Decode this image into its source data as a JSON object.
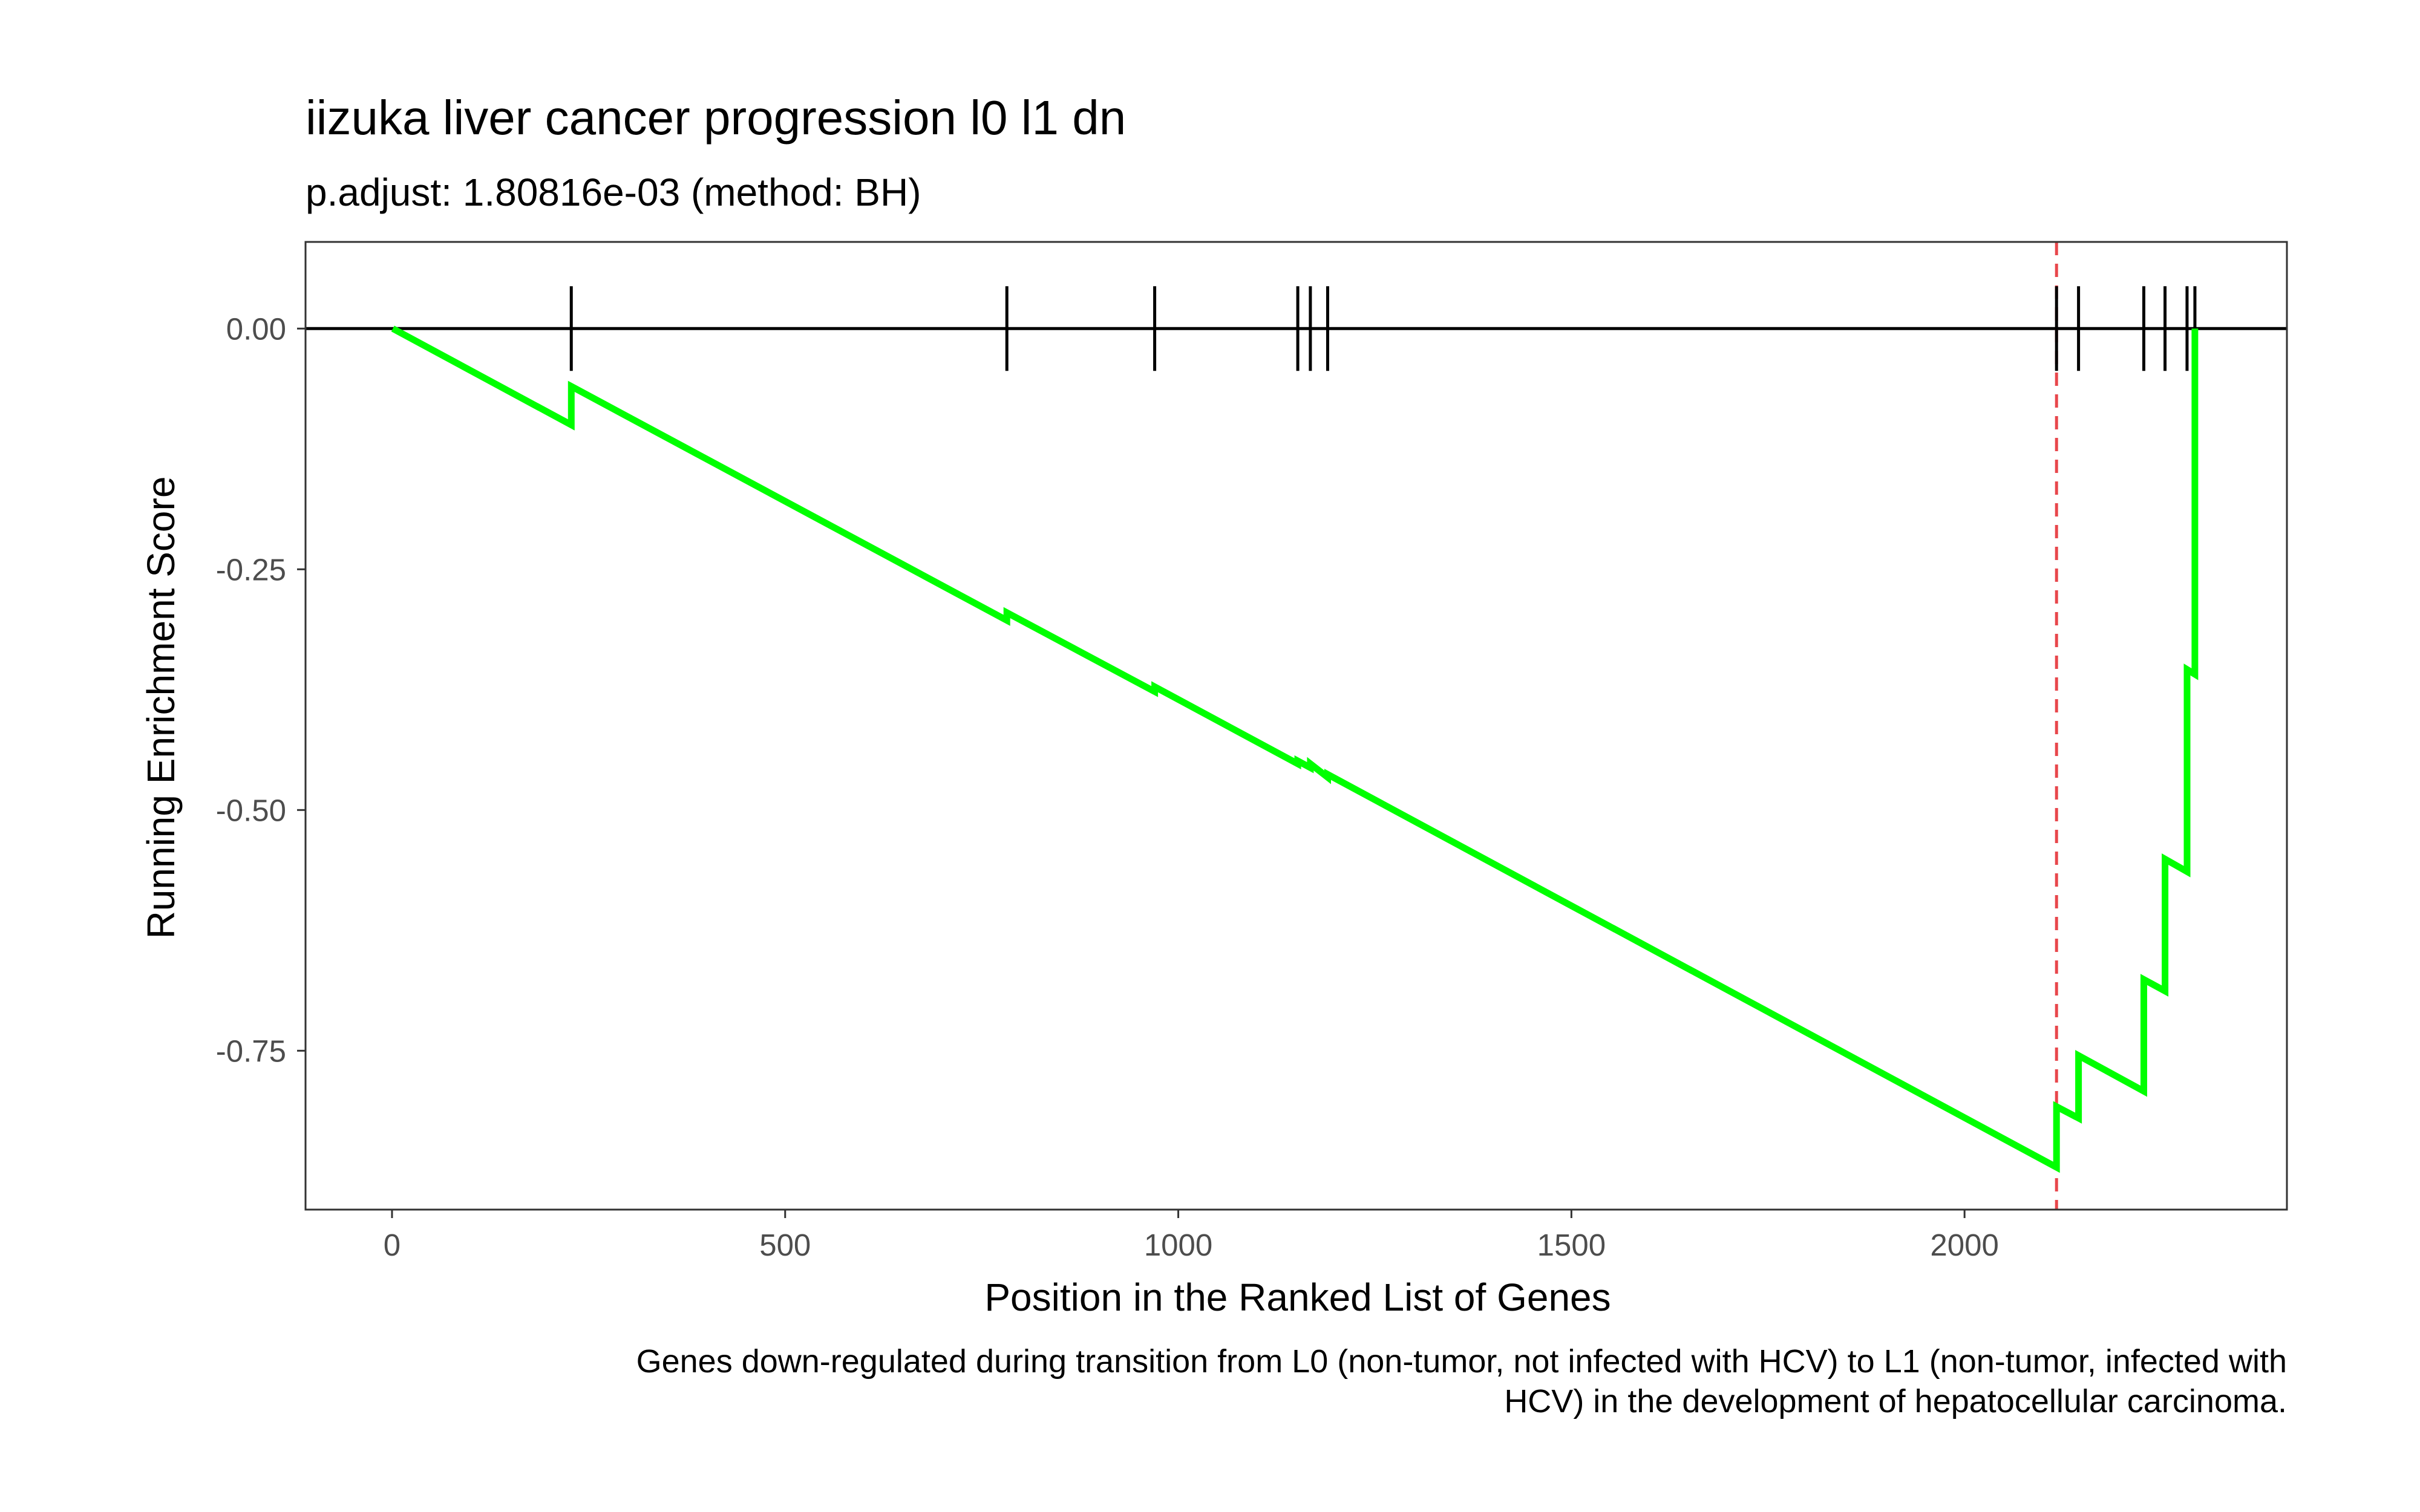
{
  "chart_data": {
    "type": "line",
    "title": "iizuka liver cancer progression l0 l1 dn",
    "subtitle": "p.adjust: 1.80816e-03 (method: BH)",
    "xlabel": "Position in the Ranked List of Genes",
    "ylabel": "Running Enrichment Score",
    "caption_lines": [
      "Genes down-regulated during transition from L0 (non-tumor, not infected with HCV) to L1 (non-tumor, infected with",
      "HCV) in the development of hepatocellular carcinoma."
    ],
    "xlim": [
      -110,
      2410
    ],
    "ylim": [
      -0.915,
      0.09
    ],
    "x_ticks": [
      0,
      500,
      1000,
      1500,
      2000
    ],
    "x_tick_labels": [
      "0",
      "500",
      "1000",
      "1500",
      "2000"
    ],
    "y_ticks": [
      0.0,
      -0.25,
      -0.5,
      -0.75
    ],
    "y_tick_labels": [
      "0.00",
      "-0.25",
      "-0.50",
      "-0.75"
    ],
    "hit_positions": [
      228,
      782,
      970,
      1152,
      1168,
      1190,
      2117,
      2145,
      2228,
      2255,
      2283,
      2293
    ],
    "leading_edge_x": 2117,
    "zero_line_y": 0.0,
    "series": [
      {
        "color": "#00ff00",
        "x": [
          1,
          228,
          228,
          782,
          782,
          970,
          970,
          1152,
          1152,
          1168,
          1168,
          1190,
          1190,
          2117,
          2117,
          2145,
          2145,
          2228,
          2228,
          2255,
          2255,
          2283,
          2283,
          2293,
          2293
        ],
        "y": [
          0.0,
          -0.1,
          -0.06,
          -0.303,
          -0.295,
          -0.377,
          -0.372,
          -0.452,
          -0.449,
          -0.456,
          -0.452,
          -0.466,
          -0.463,
          -0.871,
          -0.808,
          -0.82,
          -0.755,
          -0.792,
          -0.676,
          -0.688,
          -0.551,
          -0.564,
          -0.354,
          -0.359,
          0.0
        ]
      }
    ],
    "colors": {
      "running_score": "#00ff00",
      "leading_edge": "#e8474c",
      "hits": "#000000",
      "panel_border": "#333333"
    },
    "grid": false,
    "legend": "none"
  }
}
